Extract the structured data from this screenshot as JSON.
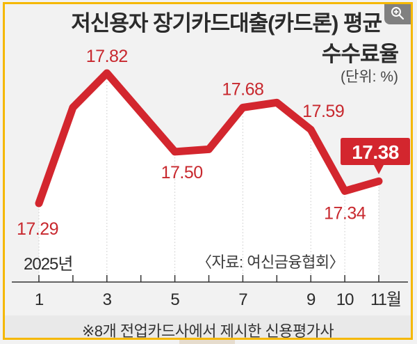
{
  "title": {
    "line1": "저신용자 장기카드대출(카드론) 평균",
    "line2": "수수료율",
    "unit": "(단위: %)"
  },
  "year_label": "2025년",
  "source": "〈자료: 여신금융협회〉",
  "footnote": "※8개 전업카드사에서 제시한 신용평가사",
  "zoom_button": {
    "icon": "zoom-in-icon"
  },
  "colors": {
    "line": "#d3262e",
    "label": "#c8282e",
    "highlight_box": "#d3262e",
    "frame_border": "#f5b800",
    "background": "#f2f2f2",
    "area_fill": "#ffffff"
  },
  "chart_data": {
    "type": "line",
    "title": "저신용자 장기카드대출(카드론) 평균 수수료율",
    "xlabel": "월 (2025년)",
    "ylabel": "수수료율 (%)",
    "x": [
      1,
      2,
      3,
      4,
      5,
      6,
      7,
      8,
      9,
      10,
      11
    ],
    "x_tick_labels": [
      "1",
      "",
      "3",
      "",
      "5",
      "",
      "7",
      "",
      "9",
      "10",
      "11월"
    ],
    "series": [
      {
        "name": "평균 수수료율",
        "values": [
          17.29,
          17.68,
          17.82,
          17.66,
          17.5,
          17.51,
          17.68,
          17.7,
          17.59,
          17.34,
          17.38
        ]
      }
    ],
    "data_labels": {
      "1": "17.29",
      "3": "17.82",
      "5": "17.50",
      "7": "17.68",
      "9": "17.59",
      "10": "17.34",
      "11": "17.38"
    },
    "highlighted_point": {
      "x": 11,
      "label": "17.38"
    },
    "grid": "vertical dotted lines at labeled months",
    "legend": "none"
  }
}
